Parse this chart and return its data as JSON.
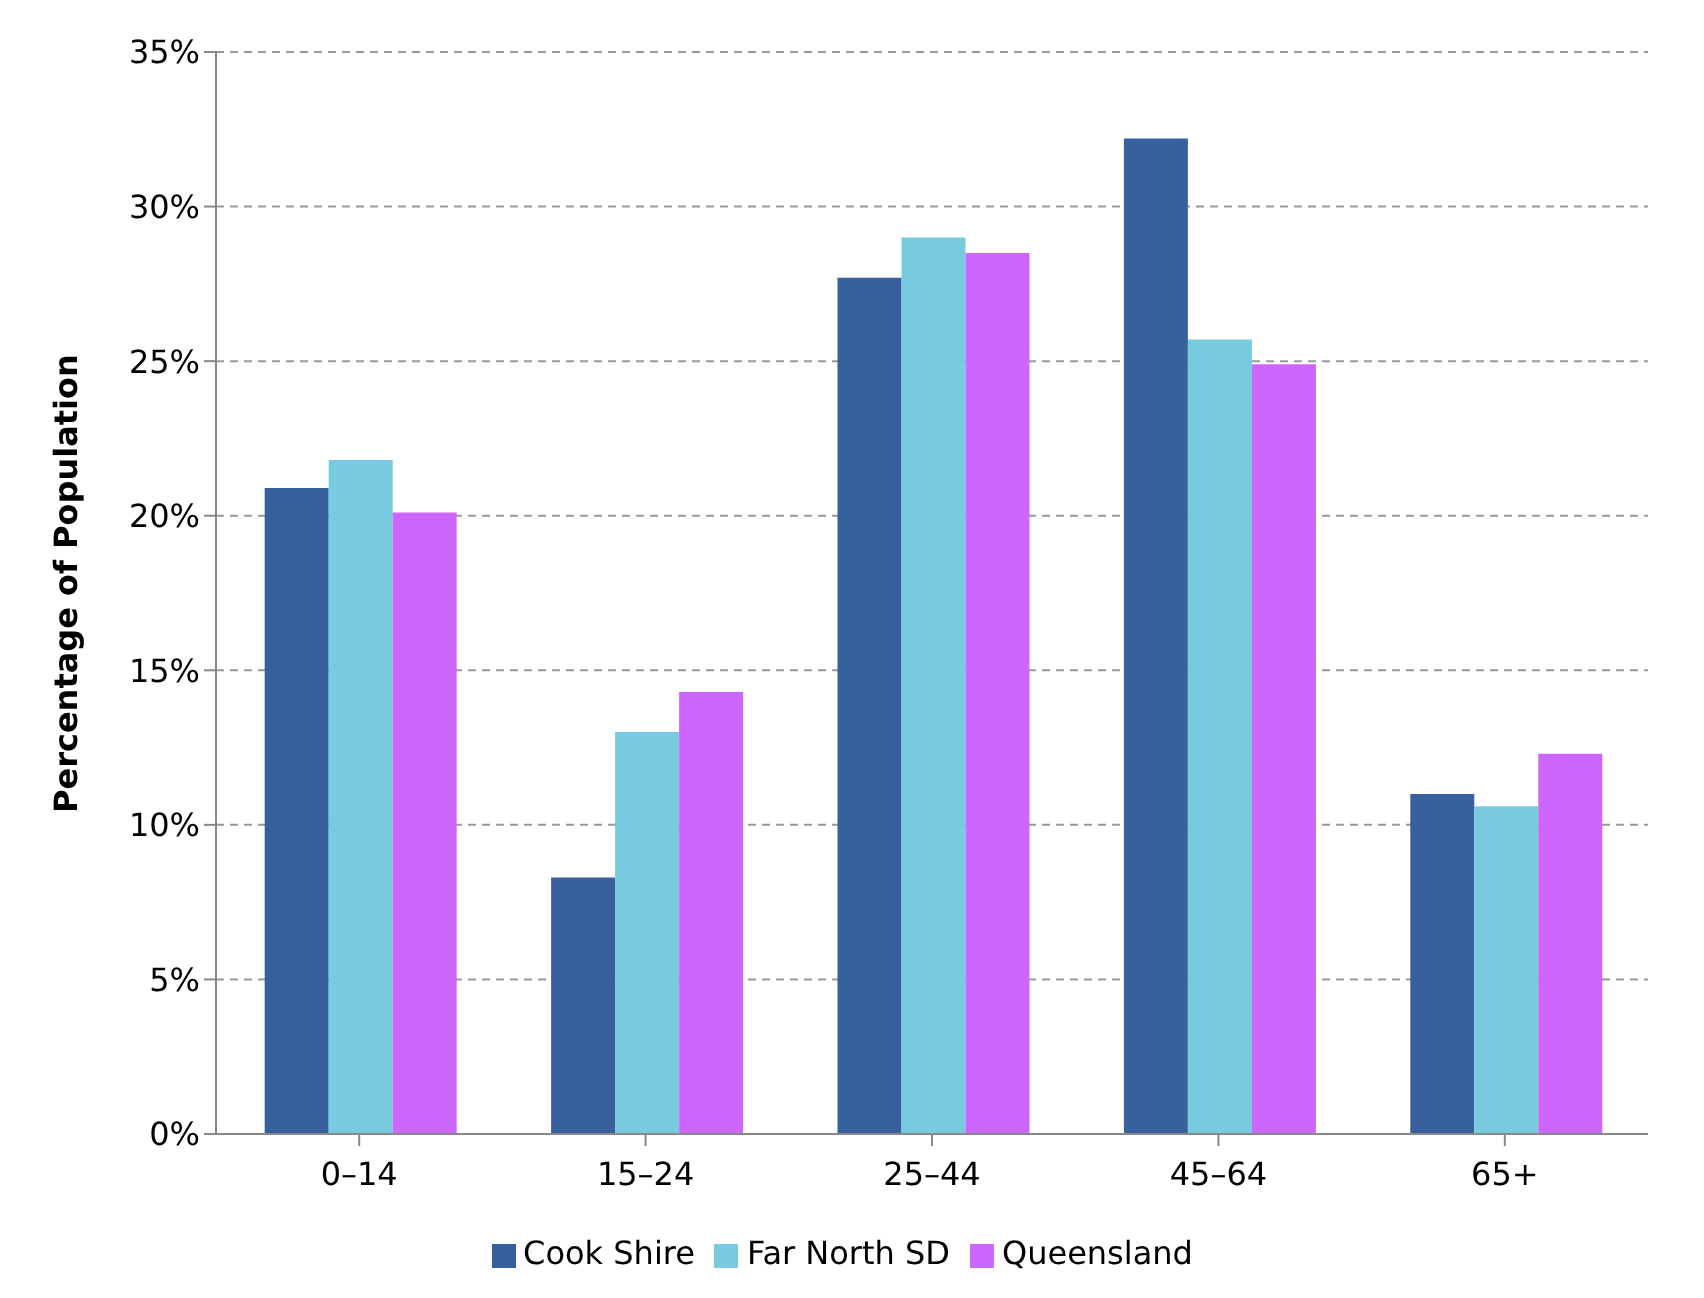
{
  "chart_data": {
    "type": "bar",
    "ylabel": "Percentage of Population",
    "categories": [
      "0–14",
      "15–24",
      "25–44",
      "45–64",
      "65+"
    ],
    "series": [
      {
        "name": "Cook Shire",
        "color": "#37619c",
        "values": [
          20.9,
          8.3,
          27.7,
          32.2,
          11.0
        ]
      },
      {
        "name": "Far North SD",
        "color": "#78cadf",
        "values": [
          21.8,
          13.0,
          29.0,
          25.7,
          10.6
        ]
      },
      {
        "name": "Queensland",
        "color": "#cc66ff",
        "values": [
          20.1,
          14.3,
          28.5,
          24.9,
          12.3
        ]
      }
    ],
    "ylim": [
      0,
      35
    ],
    "yticks": [
      {
        "value": 0,
        "label": "0%"
      },
      {
        "value": 5,
        "label": "5%"
      },
      {
        "value": 10,
        "label": "10%"
      },
      {
        "value": 15,
        "label": "15%"
      },
      {
        "value": 20,
        "label": "20%"
      },
      {
        "value": 25,
        "label": "25%"
      },
      {
        "value": 30,
        "label": "30%"
      },
      {
        "value": 35,
        "label": "35%"
      }
    ],
    "grid": "y",
    "legend": "bottom"
  }
}
